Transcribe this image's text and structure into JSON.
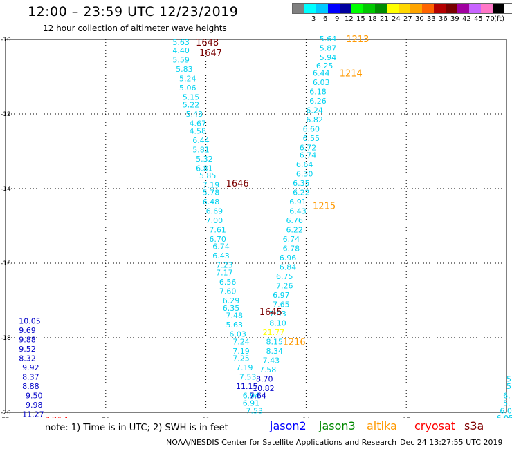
{
  "header": {
    "title": "12:00 – 23:59 UTC 12/23/2019",
    "subtitle": "12 hour collection of altimeter wave heights"
  },
  "legend": {
    "unit": "(ft)",
    "swatches": [
      {
        "color": "#808080",
        "label": ""
      },
      {
        "color": "#00ffff",
        "label": "3"
      },
      {
        "color": "#00c8ff",
        "label": "6"
      },
      {
        "color": "#0000ff",
        "label": "9"
      },
      {
        "color": "#0000a0",
        "label": "12"
      },
      {
        "color": "#00ff00",
        "label": "15"
      },
      {
        "color": "#00c800",
        "label": "18"
      },
      {
        "color": "#008c00",
        "label": "21"
      },
      {
        "color": "#ffff00",
        "label": "24"
      },
      {
        "color": "#ffd700",
        "label": "27"
      },
      {
        "color": "#ffa500",
        "label": "30"
      },
      {
        "color": "#ff6400",
        "label": "33"
      },
      {
        "color": "#b40000",
        "label": "36"
      },
      {
        "color": "#780000",
        "label": "39"
      },
      {
        "color": "#a000a0",
        "label": "42"
      },
      {
        "color": "#c864ff",
        "label": "45"
      },
      {
        "color": "#ff78c8",
        "label": "70"
      },
      {
        "color": "#000000",
        "label": ""
      }
    ]
  },
  "chart_data": {
    "type": "scatter",
    "x_axis": {
      "range": [
        75,
        90
      ],
      "ticks": [
        "75",
        "78",
        "81",
        "84",
        "87",
        "90"
      ]
    },
    "y_axis": {
      "range": [
        -20,
        -10
      ],
      "ticks": [
        "-10",
        "-12",
        "-14",
        "-16",
        "-18",
        "-20"
      ]
    },
    "grid": true,
    "colors": {
      "cyan": "#00d2f0",
      "blue": "#0000c8",
      "yellow": "#ffff00",
      "orange": "#ff9900",
      "maroon": "#7a0000",
      "red": "#ff0000"
    },
    "time_labels": [
      {
        "text": "1648",
        "x": 80.7,
        "y": -10.07,
        "color": "maroon"
      },
      {
        "text": "1647",
        "x": 80.8,
        "y": -10.35,
        "color": "maroon"
      },
      {
        "text": "1646",
        "x": 81.6,
        "y": -13.85,
        "color": "maroon"
      },
      {
        "text": "1645",
        "x": 82.6,
        "y": -17.3,
        "color": "maroon"
      },
      {
        "text": "1213",
        "x": 85.2,
        "y": -9.98,
        "color": "orange"
      },
      {
        "text": "1214",
        "x": 85.0,
        "y": -10.9,
        "color": "orange"
      },
      {
        "text": "1215",
        "x": 84.2,
        "y": -14.45,
        "color": "orange"
      },
      {
        "text": "1216",
        "x": 83.3,
        "y": -18.1,
        "color": "orange"
      },
      {
        "text": "1714",
        "x": 76.2,
        "y": -20.2,
        "color": "red"
      }
    ],
    "tracks": [
      {
        "name": "cryosat",
        "color": "cyan",
        "points": [
          {
            "v": "5.63",
            "x": 80.0,
            "y": -10.07
          },
          {
            "v": "4.40",
            "x": 80.0,
            "y": -10.3
          },
          {
            "v": "5.59",
            "x": 80.0,
            "y": -10.55
          },
          {
            "v": "5.83",
            "x": 80.1,
            "y": -10.8
          },
          {
            "v": "5.24",
            "x": 80.2,
            "y": -11.05
          },
          {
            "v": "5.06",
            "x": 80.2,
            "y": -11.3
          },
          {
            "v": "5.15",
            "x": 80.3,
            "y": -11.55
          },
          {
            "v": "5.22",
            "x": 80.3,
            "y": -11.75
          },
          {
            "v": "5.43",
            "x": 80.4,
            "y": -12.0
          },
          {
            "v": "4.67",
            "x": 80.5,
            "y": -12.25
          },
          {
            "v": "4.58",
            "x": 80.5,
            "y": -12.45
          },
          {
            "v": "6.44",
            "x": 80.6,
            "y": -12.7
          },
          {
            "v": "5.81",
            "x": 80.6,
            "y": -12.95
          },
          {
            "v": "5.32",
            "x": 80.7,
            "y": -13.2
          },
          {
            "v": "6.81",
            "x": 80.7,
            "y": -13.45
          },
          {
            "v": "5.85",
            "x": 80.8,
            "y": -13.65
          },
          {
            "v": "7.19",
            "x": 80.9,
            "y": -13.9
          },
          {
            "v": "5.78",
            "x": 80.9,
            "y": -14.1
          },
          {
            "v": "6.48",
            "x": 80.9,
            "y": -14.35
          },
          {
            "v": "6.69",
            "x": 81.0,
            "y": -14.6
          },
          {
            "v": "7.00",
            "x": 81.0,
            "y": -14.85
          },
          {
            "v": "7.61",
            "x": 81.1,
            "y": -15.1
          },
          {
            "v": "6.70",
            "x": 81.1,
            "y": -15.35
          },
          {
            "v": "6.74",
            "x": 81.2,
            "y": -15.55
          },
          {
            "v": "6.43",
            "x": 81.2,
            "y": -15.8
          },
          {
            "v": "7.23",
            "x": 81.3,
            "y": -16.05
          },
          {
            "v": "7.17",
            "x": 81.3,
            "y": -16.25
          },
          {
            "v": "6.56",
            "x": 81.4,
            "y": -16.5
          },
          {
            "v": "7.60",
            "x": 81.4,
            "y": -16.75
          },
          {
            "v": "6.29",
            "x": 81.5,
            "y": -17.0
          },
          {
            "v": "6.35",
            "x": 81.5,
            "y": -17.2
          },
          {
            "v": "7.48",
            "x": 81.6,
            "y": -17.4
          },
          {
            "v": "5.63",
            "x": 81.6,
            "y": -17.65
          },
          {
            "v": "6.03",
            "x": 81.7,
            "y": -17.9
          },
          {
            "v": "7.24",
            "x": 81.8,
            "y": -18.1
          },
          {
            "v": "7.19",
            "x": 81.8,
            "y": -18.35
          },
          {
            "v": "7.25",
            "x": 81.8,
            "y": -18.55
          },
          {
            "v": "7.19",
            "x": 81.9,
            "y": -18.8
          },
          {
            "v": "7.53",
            "x": 82.0,
            "y": -19.05
          },
          {
            "v": "6.94",
            "x": 82.1,
            "y": -19.55
          },
          {
            "v": "6.91",
            "x": 82.1,
            "y": -19.75
          },
          {
            "v": "7.53",
            "x": 82.2,
            "y": -19.95
          }
        ]
      },
      {
        "name": "s3a",
        "color": "cyan",
        "points": [
          {
            "v": "5.64",
            "x": 84.4,
            "y": -9.98
          },
          {
            "v": "5.87",
            "x": 84.4,
            "y": -10.23
          },
          {
            "v": "5.94",
            "x": 84.4,
            "y": -10.48
          },
          {
            "v": "6.25",
            "x": 84.3,
            "y": -10.7
          },
          {
            "v": "6.44",
            "x": 84.2,
            "y": -10.9
          },
          {
            "v": "6.03",
            "x": 84.2,
            "y": -11.15
          },
          {
            "v": "6.18",
            "x": 84.1,
            "y": -11.4
          },
          {
            "v": "6.26",
            "x": 84.1,
            "y": -11.65
          },
          {
            "v": "6.24",
            "x": 84.0,
            "y": -11.9
          },
          {
            "v": "6.82",
            "x": 84.0,
            "y": -12.15
          },
          {
            "v": "6.60",
            "x": 83.9,
            "y": -12.4
          },
          {
            "v": "6.55",
            "x": 83.9,
            "y": -12.65
          },
          {
            "v": "6.72",
            "x": 83.8,
            "y": -12.9
          },
          {
            "v": "6.74",
            "x": 83.8,
            "y": -13.1
          },
          {
            "v": "6.64",
            "x": 83.7,
            "y": -13.35
          },
          {
            "v": "6.30",
            "x": 83.7,
            "y": -13.6
          },
          {
            "v": "6.35",
            "x": 83.6,
            "y": -13.85
          },
          {
            "v": "6.22",
            "x": 83.6,
            "y": -14.1
          },
          {
            "v": "6.91",
            "x": 83.5,
            "y": -14.35
          },
          {
            "v": "6.43",
            "x": 83.5,
            "y": -14.6
          },
          {
            "v": "6.76",
            "x": 83.4,
            "y": -14.85
          },
          {
            "v": "6.22",
            "x": 83.4,
            "y": -15.1
          },
          {
            "v": "6.74",
            "x": 83.3,
            "y": -15.35
          },
          {
            "v": "6.78",
            "x": 83.3,
            "y": -15.6
          },
          {
            "v": "6.96",
            "x": 83.2,
            "y": -15.85
          },
          {
            "v": "6.84",
            "x": 83.2,
            "y": -16.1
          },
          {
            "v": "6.75",
            "x": 83.1,
            "y": -16.35
          },
          {
            "v": "7.26",
            "x": 83.1,
            "y": -16.6
          },
          {
            "v": "6.97",
            "x": 83.0,
            "y": -16.85
          },
          {
            "v": "7.65",
            "x": 83.0,
            "y": -17.1
          },
          {
            "v": "7.93",
            "x": 82.9,
            "y": -17.35
          },
          {
            "v": "8.10",
            "x": 82.9,
            "y": -17.6
          },
          {
            "v": "8.15",
            "x": 82.8,
            "y": -18.1
          },
          {
            "v": "8.34",
            "x": 82.8,
            "y": -18.35
          },
          {
            "v": "7.43",
            "x": 82.7,
            "y": -18.6
          },
          {
            "v": "7.58",
            "x": 82.6,
            "y": -18.85
          }
        ]
      },
      {
        "name": "s3a-yellow",
        "color": "yellow",
        "points": [
          {
            "v": "21.77",
            "x": 82.7,
            "y": -17.85
          }
        ]
      },
      {
        "name": "jason2-mid",
        "color": "blue",
        "points": [
          {
            "v": "11.15",
            "x": 81.9,
            "y": -19.3
          },
          {
            "v": "8.70",
            "x": 82.5,
            "y": -19.1
          },
          {
            "v": "10.82",
            "x": 82.4,
            "y": -19.35
          },
          {
            "v": "7.64",
            "x": 82.3,
            "y": -19.55
          }
        ]
      },
      {
        "name": "jason2-left",
        "color": "blue",
        "points": [
          {
            "v": "10.05",
            "x": 75.4,
            "y": -17.55
          },
          {
            "v": "9.69",
            "x": 75.4,
            "y": -17.8
          },
          {
            "v": "9.88",
            "x": 75.4,
            "y": -18.05
          },
          {
            "v": "9.52",
            "x": 75.4,
            "y": -18.3
          },
          {
            "v": "8.32",
            "x": 75.4,
            "y": -18.55
          },
          {
            "v": "9.92",
            "x": 75.5,
            "y": -18.8
          },
          {
            "v": "8.37",
            "x": 75.5,
            "y": -19.05
          },
          {
            "v": "8.88",
            "x": 75.5,
            "y": -19.3
          },
          {
            "v": "9.50",
            "x": 75.6,
            "y": -19.55
          },
          {
            "v": "9.98",
            "x": 75.6,
            "y": -19.8
          },
          {
            "v": "11.27",
            "x": 75.5,
            "y": -20.05
          }
        ]
      },
      {
        "name": "s3a-right",
        "color": "cyan",
        "points": [
          {
            "v": "5.",
            "x": 90.0,
            "y": -19.1
          },
          {
            "v": "5.",
            "x": 90.0,
            "y": -19.3
          },
          {
            "v": "6.",
            "x": 89.9,
            "y": -19.55
          },
          {
            "v": "5.",
            "x": 89.9,
            "y": -19.75
          },
          {
            "v": "6.05",
            "x": 89.8,
            "y": -19.95
          },
          {
            "v": "6.05",
            "x": 89.7,
            "y": -20.15
          }
        ]
      }
    ]
  },
  "footer": {
    "note": "note:  1) Time is in UTC;  2) SWH is in feet",
    "satellites": [
      {
        "name": "jason2",
        "color": "#0000ff"
      },
      {
        "name": "jason3",
        "color": "#008800"
      },
      {
        "name": "altika",
        "color": "#ff9900"
      },
      {
        "name": "cryosat",
        "color": "#ff0000"
      },
      {
        "name": "s3a",
        "color": "#800000"
      }
    ],
    "credit": "NOAA/NESDIS Center for Satellite Applications and Research",
    "timestamp": "Dec 24 13:27:55 UTC 2019"
  }
}
